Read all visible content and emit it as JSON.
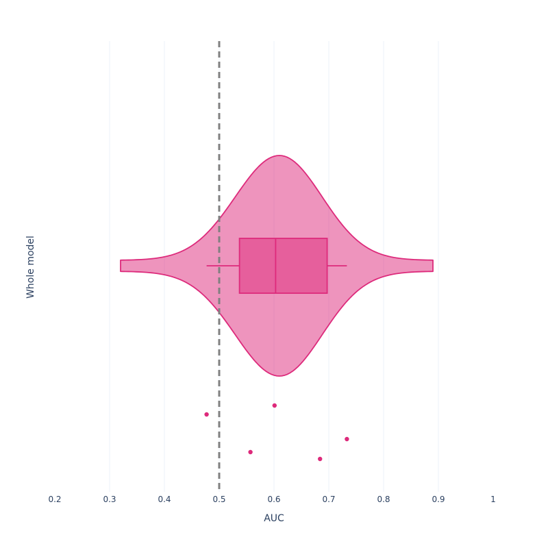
{
  "chart_data": {
    "type": "violin",
    "orientation": "horizontal",
    "xlabel": "AUC",
    "ylabel": "Whole model",
    "xlim": [
      0.2,
      1.0
    ],
    "xticks": [
      0.2,
      0.3,
      0.4,
      0.5,
      0.6,
      0.7,
      0.8,
      0.9,
      1.0
    ],
    "xtick_labels": [
      "0.2",
      "0.3",
      "0.4",
      "0.5",
      "0.6",
      "0.7",
      "0.8",
      "0.9",
      "1"
    ],
    "grid": "vertical",
    "reference_line": {
      "x": 0.5,
      "style": "dashed",
      "color": "#808080"
    },
    "series": [
      {
        "category": "Whole model",
        "color": "#dd2a7b",
        "fill_color": "#e25a9a",
        "violin_range": [
          0.32,
          0.89
        ],
        "violin_peak": 0.61,
        "box": {
          "q1": 0.537,
          "median": 0.603,
          "q3": 0.697,
          "whisker_low": 0.477,
          "whisker_high": 0.733
        },
        "points": [
          0.477,
          0.601,
          0.733,
          0.557,
          0.684
        ]
      }
    ]
  }
}
